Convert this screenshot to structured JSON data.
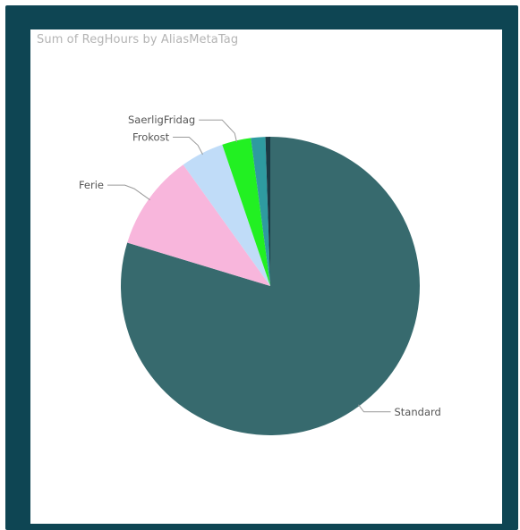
{
  "chart_data": {
    "type": "pie",
    "title": "Sum of RegHours by AliasMetaTag",
    "slices": [
      {
        "label": "Standard",
        "value": 76.5,
        "color": "#376a6e",
        "show_label": true
      },
      {
        "label": "Ferie",
        "value": 10.0,
        "color": "#f8b6dc",
        "show_label": true
      },
      {
        "label": "Frokost",
        "value": 4.5,
        "color": "#c0dcf8",
        "show_label": true
      },
      {
        "label": "SaerligFridag",
        "value": 3.0,
        "color": "#22f022",
        "show_label": true
      },
      {
        "label": "",
        "value": 1.5,
        "color": "#2e9ba0",
        "show_label": false
      },
      {
        "label": "",
        "value": 0.5,
        "color": "#1b3a44",
        "show_label": false
      }
    ]
  }
}
